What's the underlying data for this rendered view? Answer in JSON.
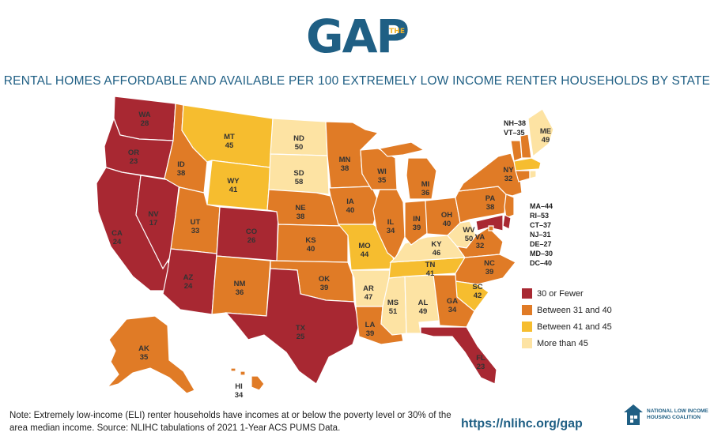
{
  "logo": {
    "main": "GAP",
    "superscript": "THE"
  },
  "title": "RENTAL HOMES AFFORDABLE AND AVAILABLE PER 100 EXTREMELY LOW INCOME RENTER HOUSEHOLDS BY STATE",
  "colors": {
    "30 or Fewer": "#a82832",
    "Between 31 and 40": "#e07b26",
    "Between 41 and 45": "#f6bd2f",
    "More than 45": "#fde3a3"
  },
  "legend": [
    {
      "label": "30 or Fewer",
      "color": "#a82832"
    },
    {
      "label": "Between 31 and 40",
      "color": "#e07b26"
    },
    {
      "label": "Between 41 and 45",
      "color": "#f6bd2f"
    },
    {
      "label": "More than 45",
      "color": "#fde3a3"
    }
  ],
  "states": {
    "WA": 28,
    "OR": 23,
    "CA": 24,
    "NV": 17,
    "ID": 38,
    "MT": 45,
    "WY": 41,
    "UT": 33,
    "AZ": 24,
    "CO": 26,
    "NM": 36,
    "ND": 50,
    "SD": 58,
    "NE": 38,
    "KS": 40,
    "OK": 39,
    "TX": 25,
    "MN": 38,
    "IA": 40,
    "MO": 44,
    "AR": 47,
    "LA": 39,
    "WI": 35,
    "IL": 34,
    "MS": 51,
    "AL": 49,
    "TN": 41,
    "KY": 46,
    "IN": 39,
    "MI": 36,
    "OH": 40,
    "WV": 50,
    "VA": 32,
    "NC": 39,
    "SC": 42,
    "GA": 34,
    "FL": 23,
    "PA": 38,
    "NY": 32,
    "ME": 49,
    "AK": 35,
    "HI": 34,
    "NH": 38,
    "VT": 35,
    "MA": 44,
    "RI": 53,
    "CT": 37,
    "NJ": 31,
    "DE": 27,
    "MD": 30,
    "DC": 40
  },
  "side_notes": {
    "nh_vt": [
      "NH–38",
      "VT–35"
    ],
    "northeast": [
      "MA–44",
      "RI–53",
      "CT–37",
      "NJ–31",
      "DE–27",
      "MD–30",
      "DC–40"
    ]
  },
  "footnote": "Note: Extremely low-income (ELI) renter households have incomes at or below the poverty level or 30% of the area median income. Source: NLIHC tabulations of 2021 1-Year ACS PUMS Data.",
  "url": "https://nlihc.org/gap",
  "org": "NATIONAL LOW INCOME HOUSING COALITION"
}
